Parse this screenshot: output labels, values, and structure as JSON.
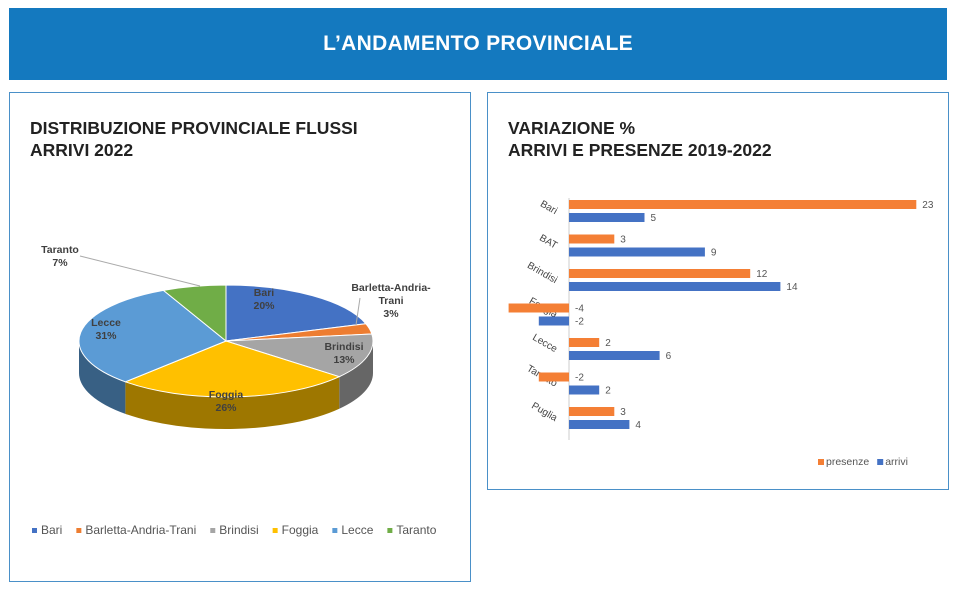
{
  "header": {
    "title": "L’ANDAMENTO PROVINCIALE"
  },
  "chart_data": [
    {
      "type": "pie",
      "title": "DISTRIBUZIONE PROVINCIALE FLUSSI\nARRIVI 2022",
      "categories": [
        "Bari",
        "Barletta-Andria-Trani",
        "Brindisi",
        "Foggia",
        "Lecce",
        "Taranto"
      ],
      "values": [
        20,
        3,
        13,
        26,
        31,
        7
      ],
      "data_labels": [
        "Bari\n20%",
        "Barletta-Andria-\nTrani\n3%",
        "Brindisi\n13%",
        "Foggia\n26%",
        "Lecce\n31%",
        "Taranto\n7%"
      ],
      "colors": [
        "#4472c4",
        "#ed7d31",
        "#a5a5a5",
        "#ffc000",
        "#5b9bd5",
        "#70ad47"
      ],
      "style": "3d",
      "legend": "bottom"
    },
    {
      "type": "bar",
      "orientation": "horizontal",
      "title": "VARIAZIONE %\nARRIVI E PRESENZE 2019-2022",
      "categories": [
        "Bari",
        "BAT",
        "Brindisi",
        "Foggia",
        "Lecce",
        "Taranto",
        "Puglia"
      ],
      "series": [
        {
          "name": "presenze",
          "values": [
            23,
            3,
            12,
            -4,
            2,
            -2,
            3
          ],
          "color": "#f47f35"
        },
        {
          "name": "arrivi",
          "values": [
            5,
            9,
            14,
            -2,
            6,
            2,
            4
          ],
          "color": "#4472c4"
        }
      ],
      "legend": "bottom-right",
      "grid": false
    }
  ]
}
